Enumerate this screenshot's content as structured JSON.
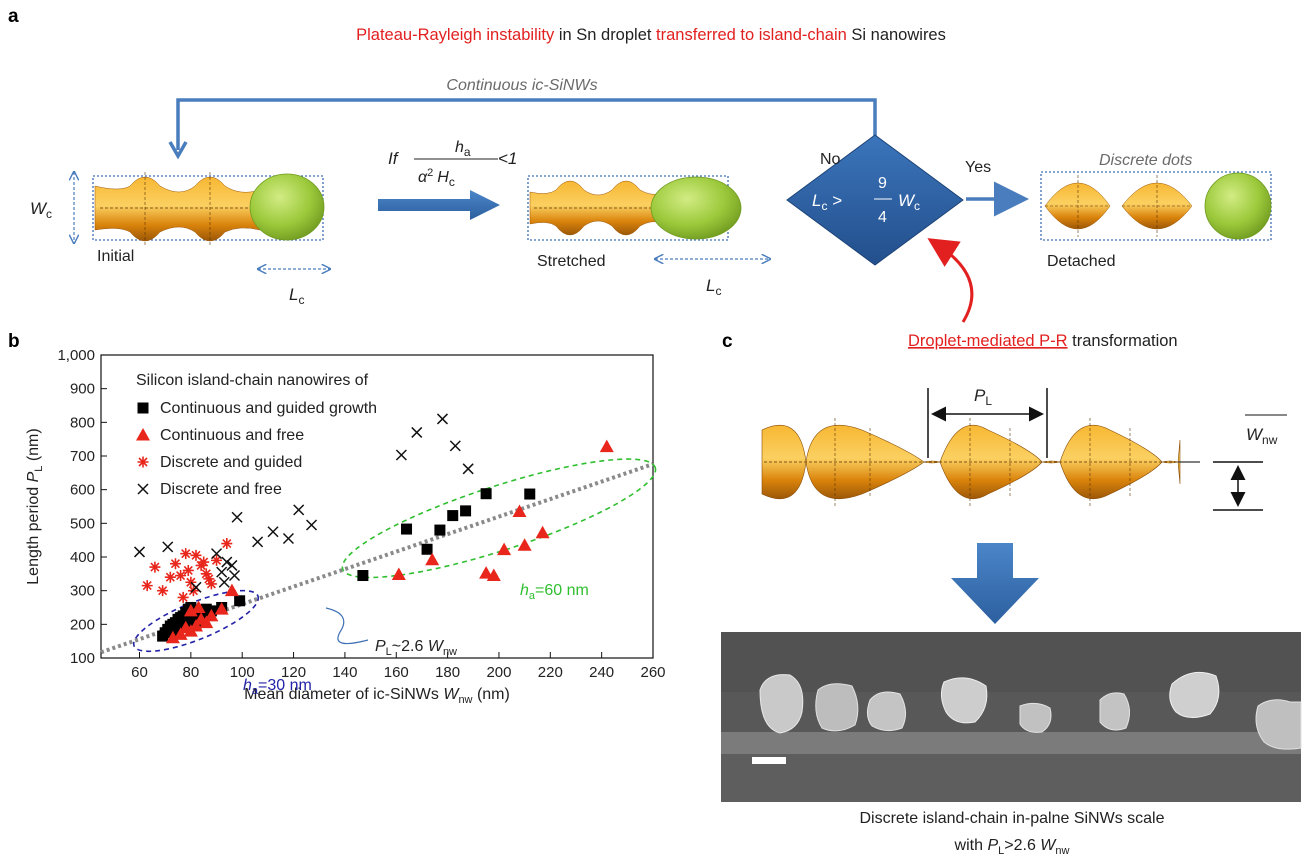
{
  "panel_a": {
    "letter": "a",
    "title_parts": [
      {
        "text": "Plateau-Rayleigh instability",
        "color": "#e32020"
      },
      {
        "text": " in Sn droplet ",
        "color": "#222222"
      },
      {
        "text": "transferred to island-chain",
        "color": "#e32020"
      },
      {
        "text": " Si nanowires",
        "color": "#222222"
      }
    ],
    "continuous_label": "Continuous ic-SiNWs",
    "discrete_label": "Discrete dots",
    "w_symbol": "W",
    "w_sub": "c",
    "l_symbol": "L",
    "l_sub": "c",
    "initial_label": "Initial",
    "stretched_label": "Stretched",
    "detached_label": "Detached",
    "condition_if": "If",
    "condition_num_sym": "h",
    "condition_num_sub": "a",
    "condition_den": "α",
    "condition_den_exp": "2",
    "condition_den_h": "H",
    "condition_den_h_sub": "c",
    "condition_tail": "<1",
    "diamond_lhs": "L",
    "diamond_lhs_sub": "c",
    "diamond_gt": " > ",
    "diamond_num": "9",
    "diamond_den": "4",
    "diamond_rhs": "W",
    "diamond_rhs_sub": "c",
    "no_label": "No",
    "yes_label": "Yes",
    "droplet_mediated": "Droplet-mediated P-R",
    "transformation": " transformation",
    "colors": {
      "blue_arrow": "#4a7dbd",
      "diamond": "#2f64a8",
      "droplet": "#8fbf2f",
      "nanowire": "#e59a16"
    }
  },
  "panel_b": {
    "letter": "b",
    "legend_title": "Silicon island-chain nanowires of",
    "legend": [
      {
        "name": "Continuous and guided growth",
        "marker": "square",
        "color": "#000000"
      },
      {
        "name": "Continuous and free",
        "marker": "triangle",
        "color": "#e8261c"
      },
      {
        "name": "Discrete and guided",
        "marker": "asterisk",
        "color": "#e8261c"
      },
      {
        "name": "Discrete and free",
        "marker": "cross",
        "color": "#111111"
      }
    ],
    "ylabel_main": "Length period ",
    "ylabel_sym": "P",
    "ylabel_sub": "L",
    "ylabel_unit": " (nm)",
    "xlabel_main": "Mean diameter of ic-SiNWs ",
    "xlabel_sym": "W",
    "xlabel_sub": "nw",
    "xlabel_unit": " (nm)",
    "fit_label_sym": "P",
    "fit_label_sub": "L",
    "fit_label_mid": "~2.6 ",
    "fit_label_w": "W",
    "fit_label_wsub": "nw",
    "ha30_sym": "h",
    "ha30_sub": "a",
    "ha30_val": "=30 nm",
    "ha60_sym": "h",
    "ha60_sub": "a",
    "ha60_val": "=60 nm"
  },
  "chart_data": {
    "type": "scatter",
    "xlim": [
      45,
      260
    ],
    "ylim": [
      100,
      1000
    ],
    "x_ticks": [
      60,
      80,
      100,
      120,
      140,
      160,
      180,
      200,
      220,
      240,
      260
    ],
    "y_ticks": [
      100,
      200,
      300,
      400,
      500,
      600,
      700,
      800,
      900,
      1000
    ],
    "y_tick_labels": [
      "100",
      "200",
      "300",
      "400",
      "500",
      "600",
      "700",
      "800",
      "900",
      "1,000"
    ],
    "fit_line": {
      "slope": 2.6,
      "intercept": 0,
      "color": "#8a8a8a"
    },
    "ellipses": [
      {
        "name": "ha30",
        "cx": 82,
        "cy": 210,
        "rx": 26,
        "ry": 55,
        "angle_deg": -22,
        "color": "#2323a8"
      },
      {
        "name": "ha60",
        "cx": 200,
        "cy": 515,
        "rx": 64,
        "ry": 95,
        "angle_deg": -18,
        "color": "#2fbf2f"
      }
    ],
    "series": [
      {
        "name": "Continuous and guided growth",
        "marker": "square",
        "color": "#000000",
        "points": [
          [
            69,
            165
          ],
          [
            70,
            175
          ],
          [
            71,
            185
          ],
          [
            72,
            195
          ],
          [
            73,
            200
          ],
          [
            74,
            205
          ],
          [
            75,
            215
          ],
          [
            76,
            220
          ],
          [
            77,
            225
          ],
          [
            78,
            235
          ],
          [
            79,
            245
          ],
          [
            80,
            250
          ],
          [
            82,
            235
          ],
          [
            84,
            225
          ],
          [
            86,
            245
          ],
          [
            88,
            240
          ],
          [
            92,
            250
          ],
          [
            99,
            270
          ],
          [
            147,
            345
          ],
          [
            164,
            483
          ],
          [
            172,
            423
          ],
          [
            177,
            480
          ],
          [
            182,
            523
          ],
          [
            187,
            537
          ],
          [
            195,
            588
          ],
          [
            212,
            587
          ],
          [
            75,
            175
          ],
          [
            78,
            195
          ],
          [
            80,
            215
          ],
          [
            82,
            200
          ]
        ]
      },
      {
        "name": "Continuous and free",
        "marker": "triangle",
        "color": "#e8261c",
        "points": [
          [
            73,
            160
          ],
          [
            76,
            170
          ],
          [
            78,
            190
          ],
          [
            80,
            180
          ],
          [
            82,
            195
          ],
          [
            84,
            215
          ],
          [
            86,
            205
          ],
          [
            88,
            225
          ],
          [
            92,
            245
          ],
          [
            96,
            300
          ],
          [
            161,
            348
          ],
          [
            174,
            392
          ],
          [
            195,
            352
          ],
          [
            198,
            345
          ],
          [
            202,
            422
          ],
          [
            208,
            535
          ],
          [
            210,
            435
          ],
          [
            217,
            472
          ],
          [
            242,
            728
          ],
          [
            80,
            240
          ],
          [
            83,
            250
          ]
        ]
      },
      {
        "name": "Discrete and guided",
        "marker": "asterisk",
        "color": "#e8261c",
        "points": [
          [
            63,
            315
          ],
          [
            66,
            370
          ],
          [
            69,
            300
          ],
          [
            72,
            340
          ],
          [
            74,
            380
          ],
          [
            76,
            345
          ],
          [
            78,
            410
          ],
          [
            79,
            360
          ],
          [
            80,
            325
          ],
          [
            82,
            405
          ],
          [
            84,
            375
          ],
          [
            86,
            350
          ],
          [
            88,
            320
          ],
          [
            90,
            390
          ],
          [
            94,
            440
          ],
          [
            77,
            280
          ],
          [
            81,
            300
          ],
          [
            85,
            385
          ],
          [
            87,
            335
          ]
        ]
      },
      {
        "name": "Discrete and free",
        "marker": "cross",
        "color": "#111111",
        "points": [
          [
            60,
            415
          ],
          [
            71,
            430
          ],
          [
            82,
            310
          ],
          [
            90,
            410
          ],
          [
            92,
            355
          ],
          [
            93,
            325
          ],
          [
            94,
            385
          ],
          [
            96,
            375
          ],
          [
            97,
            345
          ],
          [
            98,
            518
          ],
          [
            106,
            445
          ],
          [
            112,
            475
          ],
          [
            118,
            455
          ],
          [
            122,
            540
          ],
          [
            127,
            495
          ],
          [
            162,
            703
          ],
          [
            168,
            770
          ],
          [
            178,
            810
          ],
          [
            183,
            730
          ],
          [
            188,
            662
          ]
        ]
      }
    ]
  },
  "panel_c": {
    "letter": "c",
    "pl_sym": "P",
    "pl_sub": "L",
    "wnw_sym": "W",
    "wnw_sub": "nw",
    "caption_line1": "Discrete island-chain in-palne SiNWs scale",
    "caption_with": "with ",
    "caption_sym": "P",
    "caption_sub": "L",
    "caption_mid": ">2.6 ",
    "caption_w": "W",
    "caption_wsub": "nw"
  }
}
